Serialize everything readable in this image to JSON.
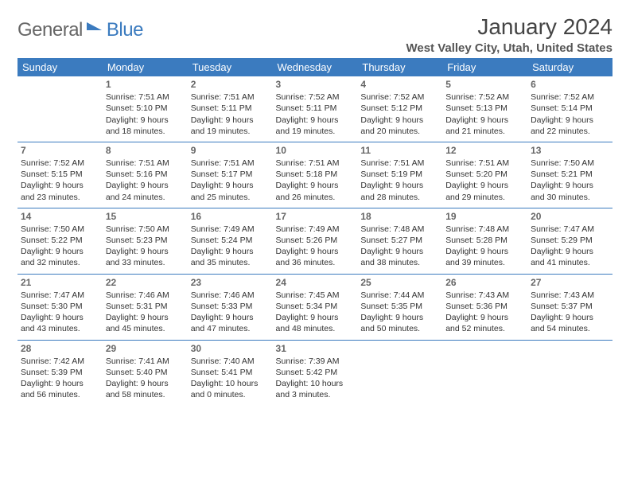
{
  "brand": {
    "part1": "General",
    "part2": "Blue"
  },
  "title": "January 2024",
  "location": "West Valley City, Utah, United States",
  "colors": {
    "header_bg": "#3b7bbf",
    "header_text": "#ffffff",
    "divider": "#3b7bbf",
    "body_text": "#333333",
    "daynum": "#666666"
  },
  "day_names": [
    "Sunday",
    "Monday",
    "Tuesday",
    "Wednesday",
    "Thursday",
    "Friday",
    "Saturday"
  ],
  "weeks": [
    [
      {},
      {
        "n": "1",
        "sr": "Sunrise: 7:51 AM",
        "ss": "Sunset: 5:10 PM",
        "d1": "Daylight: 9 hours",
        "d2": "and 18 minutes."
      },
      {
        "n": "2",
        "sr": "Sunrise: 7:51 AM",
        "ss": "Sunset: 5:11 PM",
        "d1": "Daylight: 9 hours",
        "d2": "and 19 minutes."
      },
      {
        "n": "3",
        "sr": "Sunrise: 7:52 AM",
        "ss": "Sunset: 5:11 PM",
        "d1": "Daylight: 9 hours",
        "d2": "and 19 minutes."
      },
      {
        "n": "4",
        "sr": "Sunrise: 7:52 AM",
        "ss": "Sunset: 5:12 PM",
        "d1": "Daylight: 9 hours",
        "d2": "and 20 minutes."
      },
      {
        "n": "5",
        "sr": "Sunrise: 7:52 AM",
        "ss": "Sunset: 5:13 PM",
        "d1": "Daylight: 9 hours",
        "d2": "and 21 minutes."
      },
      {
        "n": "6",
        "sr": "Sunrise: 7:52 AM",
        "ss": "Sunset: 5:14 PM",
        "d1": "Daylight: 9 hours",
        "d2": "and 22 minutes."
      }
    ],
    [
      {
        "n": "7",
        "sr": "Sunrise: 7:52 AM",
        "ss": "Sunset: 5:15 PM",
        "d1": "Daylight: 9 hours",
        "d2": "and 23 minutes."
      },
      {
        "n": "8",
        "sr": "Sunrise: 7:51 AM",
        "ss": "Sunset: 5:16 PM",
        "d1": "Daylight: 9 hours",
        "d2": "and 24 minutes."
      },
      {
        "n": "9",
        "sr": "Sunrise: 7:51 AM",
        "ss": "Sunset: 5:17 PM",
        "d1": "Daylight: 9 hours",
        "d2": "and 25 minutes."
      },
      {
        "n": "10",
        "sr": "Sunrise: 7:51 AM",
        "ss": "Sunset: 5:18 PM",
        "d1": "Daylight: 9 hours",
        "d2": "and 26 minutes."
      },
      {
        "n": "11",
        "sr": "Sunrise: 7:51 AM",
        "ss": "Sunset: 5:19 PM",
        "d1": "Daylight: 9 hours",
        "d2": "and 28 minutes."
      },
      {
        "n": "12",
        "sr": "Sunrise: 7:51 AM",
        "ss": "Sunset: 5:20 PM",
        "d1": "Daylight: 9 hours",
        "d2": "and 29 minutes."
      },
      {
        "n": "13",
        "sr": "Sunrise: 7:50 AM",
        "ss": "Sunset: 5:21 PM",
        "d1": "Daylight: 9 hours",
        "d2": "and 30 minutes."
      }
    ],
    [
      {
        "n": "14",
        "sr": "Sunrise: 7:50 AM",
        "ss": "Sunset: 5:22 PM",
        "d1": "Daylight: 9 hours",
        "d2": "and 32 minutes."
      },
      {
        "n": "15",
        "sr": "Sunrise: 7:50 AM",
        "ss": "Sunset: 5:23 PM",
        "d1": "Daylight: 9 hours",
        "d2": "and 33 minutes."
      },
      {
        "n": "16",
        "sr": "Sunrise: 7:49 AM",
        "ss": "Sunset: 5:24 PM",
        "d1": "Daylight: 9 hours",
        "d2": "and 35 minutes."
      },
      {
        "n": "17",
        "sr": "Sunrise: 7:49 AM",
        "ss": "Sunset: 5:26 PM",
        "d1": "Daylight: 9 hours",
        "d2": "and 36 minutes."
      },
      {
        "n": "18",
        "sr": "Sunrise: 7:48 AM",
        "ss": "Sunset: 5:27 PM",
        "d1": "Daylight: 9 hours",
        "d2": "and 38 minutes."
      },
      {
        "n": "19",
        "sr": "Sunrise: 7:48 AM",
        "ss": "Sunset: 5:28 PM",
        "d1": "Daylight: 9 hours",
        "d2": "and 39 minutes."
      },
      {
        "n": "20",
        "sr": "Sunrise: 7:47 AM",
        "ss": "Sunset: 5:29 PM",
        "d1": "Daylight: 9 hours",
        "d2": "and 41 minutes."
      }
    ],
    [
      {
        "n": "21",
        "sr": "Sunrise: 7:47 AM",
        "ss": "Sunset: 5:30 PM",
        "d1": "Daylight: 9 hours",
        "d2": "and 43 minutes."
      },
      {
        "n": "22",
        "sr": "Sunrise: 7:46 AM",
        "ss": "Sunset: 5:31 PM",
        "d1": "Daylight: 9 hours",
        "d2": "and 45 minutes."
      },
      {
        "n": "23",
        "sr": "Sunrise: 7:46 AM",
        "ss": "Sunset: 5:33 PM",
        "d1": "Daylight: 9 hours",
        "d2": "and 47 minutes."
      },
      {
        "n": "24",
        "sr": "Sunrise: 7:45 AM",
        "ss": "Sunset: 5:34 PM",
        "d1": "Daylight: 9 hours",
        "d2": "and 48 minutes."
      },
      {
        "n": "25",
        "sr": "Sunrise: 7:44 AM",
        "ss": "Sunset: 5:35 PM",
        "d1": "Daylight: 9 hours",
        "d2": "and 50 minutes."
      },
      {
        "n": "26",
        "sr": "Sunrise: 7:43 AM",
        "ss": "Sunset: 5:36 PM",
        "d1": "Daylight: 9 hours",
        "d2": "and 52 minutes."
      },
      {
        "n": "27",
        "sr": "Sunrise: 7:43 AM",
        "ss": "Sunset: 5:37 PM",
        "d1": "Daylight: 9 hours",
        "d2": "and 54 minutes."
      }
    ],
    [
      {
        "n": "28",
        "sr": "Sunrise: 7:42 AM",
        "ss": "Sunset: 5:39 PM",
        "d1": "Daylight: 9 hours",
        "d2": "and 56 minutes."
      },
      {
        "n": "29",
        "sr": "Sunrise: 7:41 AM",
        "ss": "Sunset: 5:40 PM",
        "d1": "Daylight: 9 hours",
        "d2": "and 58 minutes."
      },
      {
        "n": "30",
        "sr": "Sunrise: 7:40 AM",
        "ss": "Sunset: 5:41 PM",
        "d1": "Daylight: 10 hours",
        "d2": "and 0 minutes."
      },
      {
        "n": "31",
        "sr": "Sunrise: 7:39 AM",
        "ss": "Sunset: 5:42 PM",
        "d1": "Daylight: 10 hours",
        "d2": "and 3 minutes."
      },
      {},
      {},
      {}
    ]
  ]
}
